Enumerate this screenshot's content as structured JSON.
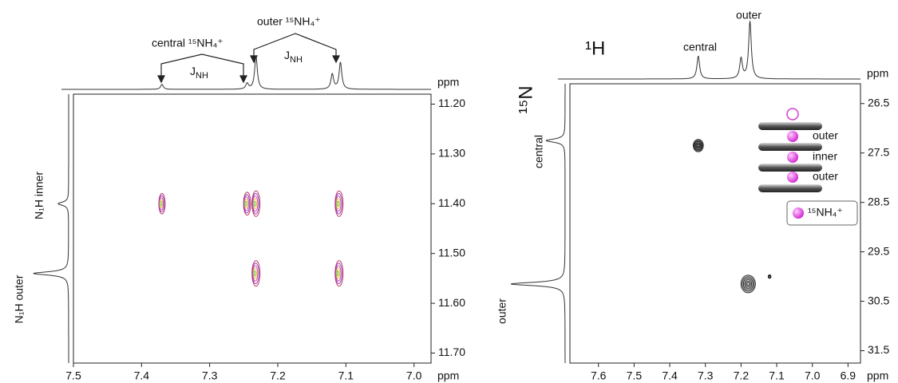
{
  "chart_data": [
    {
      "type": "contour",
      "xlim": [
        7.5,
        6.975
      ],
      "xticks": [
        7.5,
        7.4,
        7.3,
        7.2,
        7.1,
        {
          "value": 7.0,
          "label": "7.0"
        }
      ],
      "x_unit": "ppm",
      "ylim": [
        11.18,
        11.72
      ],
      "yticks": [
        {
          "value": 11.2,
          "label": "11.20"
        },
        {
          "value": 11.3,
          "label": "11.30"
        },
        {
          "value": 11.4,
          "label": "11.40"
        },
        {
          "value": 11.5,
          "label": "11.50"
        },
        {
          "value": 11.6,
          "label": "11.60"
        },
        {
          "value": 11.7,
          "label": "11.70"
        }
      ],
      "y_unit": "ppm",
      "y_labels": [
        "N₁H inner",
        "N₁H outer"
      ],
      "peaks": {
        "x": [
          7.37,
          7.245,
          7.232,
          7.11,
          7.232,
          7.11
        ],
        "y": [
          11.4,
          11.4,
          11.4,
          11.4,
          11.54,
          11.54
        ],
        "intensity": [
          0.8,
          0.9,
          1,
          1,
          1,
          1
        ]
      },
      "contour_colors": [
        "#c0306a",
        "#8e44ad",
        "#d050c0",
        "#e0d040",
        "#7cc040"
      ],
      "x_projection": {
        "x": [
          7.37,
          7.245,
          7.232,
          7.12,
          7.108
        ],
        "height": [
          0.15,
          0.17,
          1.0,
          0.45,
          0.8
        ]
      },
      "y_projection": {
        "y": [
          11.4,
          11.54
        ],
        "height": [
          0.3,
          1.0
        ]
      },
      "annotations": [
        "central ¹⁵NH₄⁺",
        "outer ¹⁵NH₄⁺"
      ],
      "coupling_label": {
        "main": "J",
        "sub": "NH"
      }
    },
    {
      "type": "contour",
      "xlim": [
        7.68,
        6.865
      ],
      "xticks": [
        7.6,
        7.5,
        7.4,
        7.3,
        7.2,
        7.1,
        {
          "value": 7.0,
          "label": "7.0"
        },
        6.9
      ],
      "x_unit": "ppm",
      "ylim": [
        26.1,
        31.75
      ],
      "yticks": [
        26.5,
        27.5,
        28.5,
        29.5,
        30.5,
        31.5
      ],
      "x_nucleus": "¹H",
      "y_nucleus": "¹⁵N",
      "peaks": {
        "x": [
          7.32,
          7.18,
          7.12
        ],
        "y": [
          27.35,
          30.15,
          30.0
        ],
        "intensity": [
          0.7,
          1,
          0.2
        ]
      },
      "contour_colors": [
        "#222222"
      ],
      "x_projection": {
        "x": [
          7.32,
          7.2,
          7.175
        ],
        "height": [
          0.4,
          0.35,
          1.0
        ],
        "labels": [
          "central",
          "outer"
        ]
      },
      "y_projection": {
        "y": [
          27.25,
          30.15
        ],
        "height": [
          0.35,
          1.0
        ],
        "labels": [
          "central",
          "outer"
        ]
      },
      "stack_labels": [
        "outer",
        "inner",
        "outer"
      ],
      "legend": "¹⁵NH₄⁺"
    }
  ]
}
